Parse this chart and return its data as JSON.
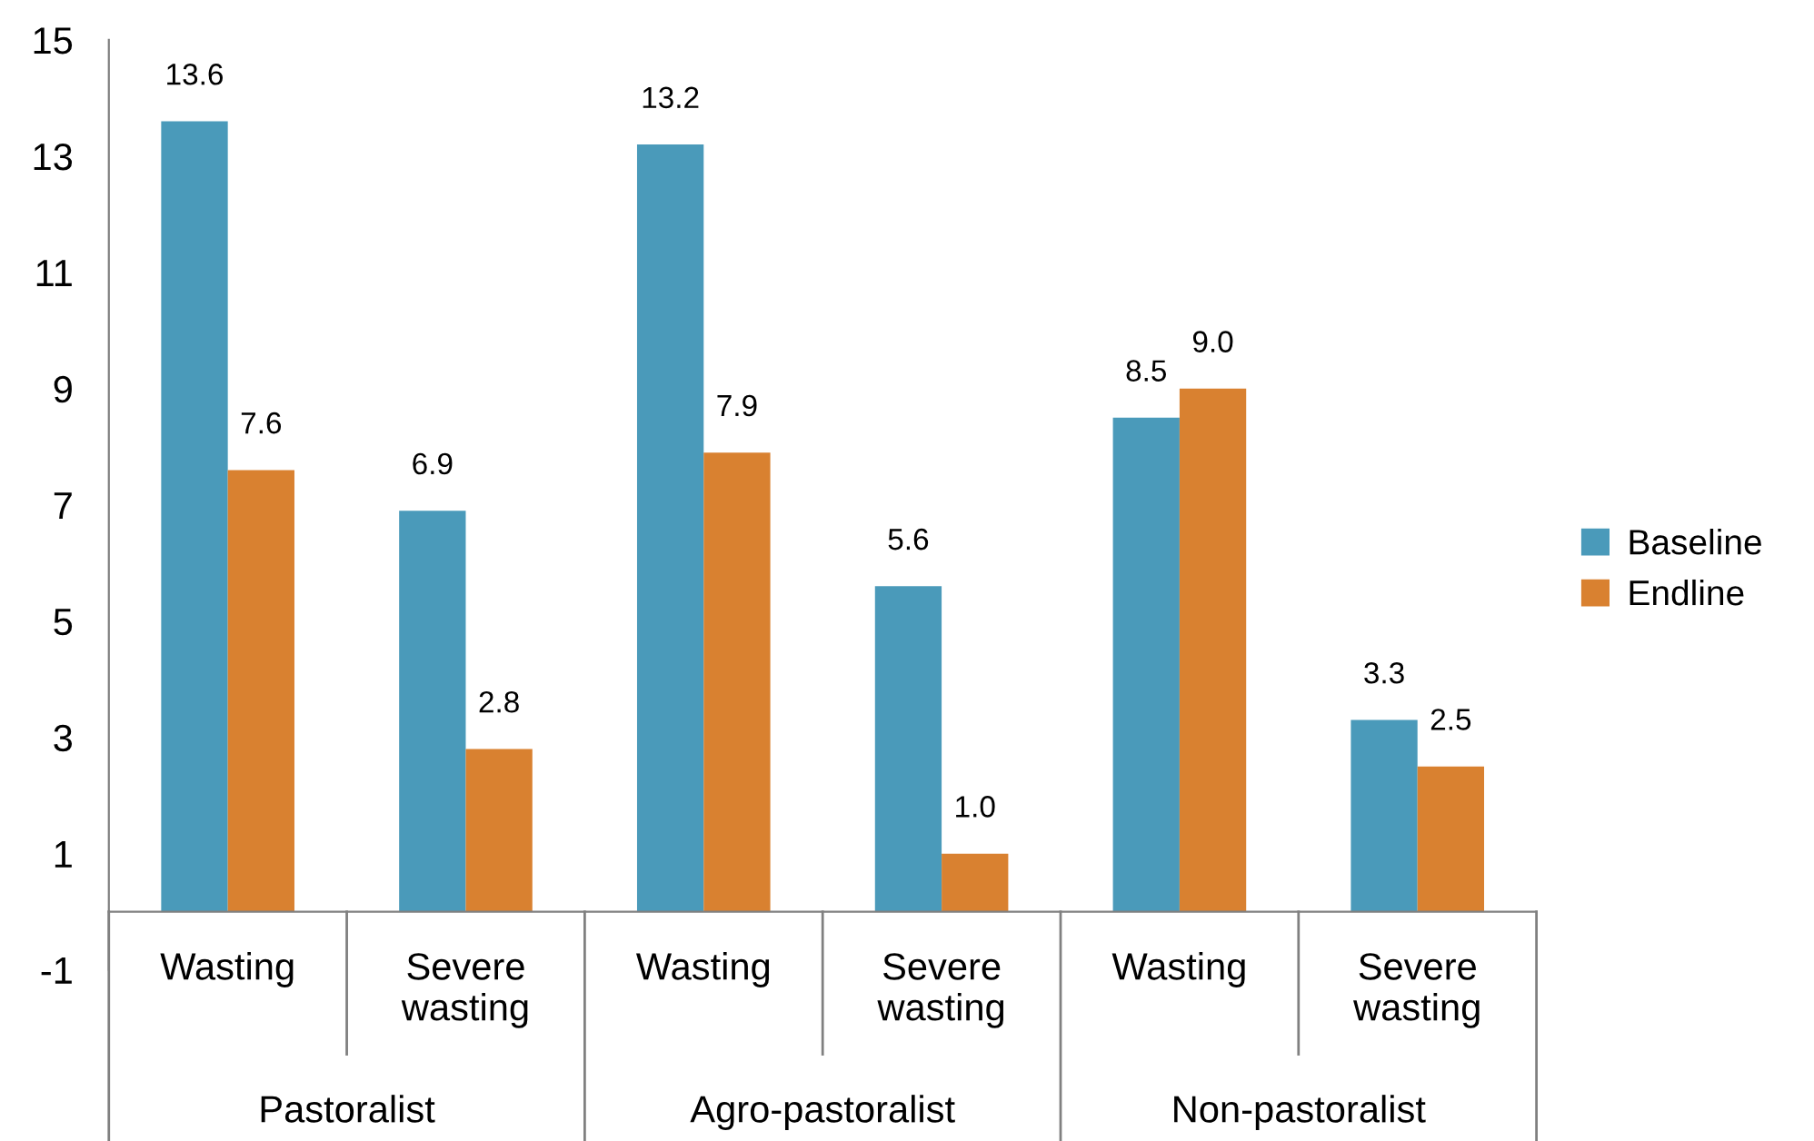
{
  "chart_data": {
    "type": "bar",
    "categories": [
      "Wasting",
      "Severe\nwasting",
      "Wasting",
      "Severe\nwasting",
      "Wasting",
      "Severe\nwasting"
    ],
    "series": [
      {
        "name": "Baseline",
        "color": "#4a9aba",
        "values": [
          13.6,
          6.9,
          13.2,
          5.6,
          8.5,
          3.3
        ],
        "value_labels": [
          "13.6",
          "6.9",
          "13.2",
          "5.6",
          "8.5",
          "3.3"
        ]
      },
      {
        "name": "Endline",
        "color": "#d98130",
        "values": [
          7.6,
          2.8,
          7.9,
          1.0,
          9.0,
          2.5
        ],
        "value_labels": [
          "7.6",
          "2.8",
          "7.9",
          "1.0",
          "9.0",
          "2.5"
        ]
      }
    ],
    "annotations": [
      "Pastoralist",
      "Agro-pastoralist",
      "Non-pastoralist"
    ],
    "ylim": [
      -1,
      15
    ],
    "yticks": [
      -1,
      1,
      3,
      5,
      7,
      9,
      11,
      13,
      15
    ],
    "grid": false,
    "legend": "right"
  }
}
